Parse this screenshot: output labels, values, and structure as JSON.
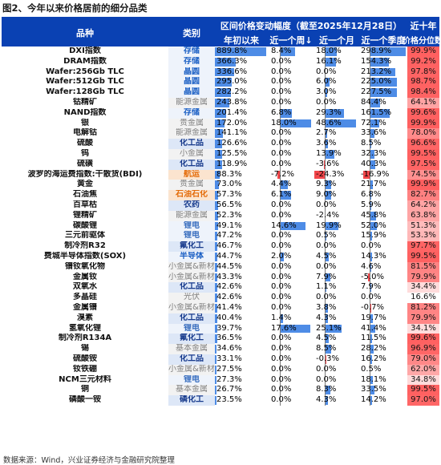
{
  "title": "图2、今年以来价格居前的细分品类",
  "header": {
    "product": "品种",
    "category": "类别",
    "range_title": "区间价格变动幅度（截至2025年12月28日）",
    "ytd": "年初以来",
    "week": "近一个周↓",
    "month": "近一个月",
    "quarter": "近一个季度",
    "pct_title": "近十年",
    "pct_sub": "价格分位数"
  },
  "footer": "数据来源：Wind，兴业证券经济与金融研究院整理",
  "colors": {
    "header_bg": "#0a41b3",
    "bar_pos": "#4e8ce6",
    "bar_neg": "#f2464a",
    "pct_high": "#f76d6d",
    "pct_low": "#ffffff"
  },
  "category_styles": {
    "存储": {
      "bg": "#eef3fb",
      "fg": "#1a5fc4"
    },
    "晶圆": {
      "bg": "#eef3fb",
      "fg": "#1a5fc4"
    },
    "能源金属": {
      "bg": "#f2f2f2",
      "fg": "#808080"
    },
    "贵金属": {
      "bg": "#f2f2f2",
      "fg": "#808080"
    },
    "小金属": {
      "bg": "#f2f2f2",
      "fg": "#808080"
    },
    "化工品": {
      "bg": "#dde7f7",
      "fg": "#173a8c"
    },
    "小金属&新材料": {
      "bg": "#f2f2f2",
      "fg": "#808080"
    },
    "航运": {
      "bg": "#fbe4cf",
      "fg": "#e46c0a"
    },
    "石油石化": {
      "bg": "#fbe4cf",
      "fg": "#e46c0a"
    },
    "农药": {
      "bg": "#dde7f7",
      "fg": "#173a8c"
    },
    "锂电": {
      "bg": "#eef3fb",
      "fg": "#3a6fbf"
    },
    "氟化工": {
      "bg": "#dde7f7",
      "fg": "#173a8c"
    },
    "半导体": {
      "bg": "#eef3fb",
      "fg": "#1a5fc4"
    },
    "光伏": {
      "bg": "#f2f2f2",
      "fg": "#808080"
    },
    "基本金属": {
      "bg": "#f2f2f2",
      "fg": "#808080"
    },
    "磷化工": {
      "bg": "#dde7f7",
      "fg": "#173a8c"
    }
  },
  "rows": [
    {
      "name": "DXI指数",
      "cat": "存储",
      "ytd": 889.8,
      "w": 8.4,
      "m": 18.0,
      "q": 298.9,
      "p": 99.9
    },
    {
      "name": "DRAM指数",
      "cat": "存储",
      "ytd": 366.3,
      "w": 0.0,
      "m": 16.1,
      "q": 154.3,
      "p": 99.2
    },
    {
      "name": "Wafer:256Gb TLC",
      "cat": "晶圆",
      "ytd": 336.6,
      "w": 0.0,
      "m": 0.0,
      "q": 213.2,
      "p": 97.8
    },
    {
      "name": "Wafer:512Gb TLC",
      "cat": "晶圆",
      "ytd": 295.0,
      "w": 0.0,
      "m": 6.0,
      "q": 225.0,
      "p": 98.7
    },
    {
      "name": "Wafer:128Gb TLC",
      "cat": "晶圆",
      "ytd": 282.2,
      "w": 0.0,
      "m": 3.0,
      "q": 227.5,
      "p": 98.4
    },
    {
      "name": "钴精矿",
      "cat": "能源金属",
      "ytd": 243.8,
      "w": 0.0,
      "m": 0.0,
      "q": 84.4,
      "p": 64.1
    },
    {
      "name": "NAND指数",
      "cat": "存储",
      "ytd": 201.4,
      "w": 6.8,
      "m": 29.3,
      "q": 161.5,
      "p": 99.6
    },
    {
      "name": "银",
      "cat": "贵金属",
      "ytd": 172.0,
      "w": 18.0,
      "m": 48.6,
      "q": 72.1,
      "p": 99.9
    },
    {
      "name": "电解钴",
      "cat": "能源金属",
      "ytd": 141.1,
      "w": 0.0,
      "m": 2.7,
      "q": 33.6,
      "p": 78.0
    },
    {
      "name": "硫酸",
      "cat": "化工品",
      "ytd": 126.6,
      "w": 0.0,
      "m": 3.6,
      "q": 8.5,
      "p": 96.6
    },
    {
      "name": "钨",
      "cat": "小金属",
      "ytd": 125.5,
      "w": 0.0,
      "m": 13.9,
      "q": 32.3,
      "p": 99.5
    },
    {
      "name": "硫磺",
      "cat": "化工品",
      "ytd": 118.9,
      "w": 0.0,
      "m": -3.6,
      "q": 40.3,
      "p": 97.5
    },
    {
      "name": "波罗的海运费指数:干散货(BDI)",
      "cat": "航运",
      "ytd": 88.3,
      "w": -7.2,
      "m": -24.3,
      "q": -16.9,
      "p": 74.5
    },
    {
      "name": "黄金",
      "cat": "贵金属",
      "ytd": 73.0,
      "w": 4.4,
      "m": 9.3,
      "q": 21.7,
      "p": 99.9
    },
    {
      "name": "石油焦",
      "cat": "石油石化",
      "ytd": 57.3,
      "w": 6.1,
      "m": 9.0,
      "q": 6.8,
      "p": 82.7
    },
    {
      "name": "百草枯",
      "cat": "农药",
      "ytd": 56.5,
      "w": 0.0,
      "m": 0.0,
      "q": 5.9,
      "p": 64.2
    },
    {
      "name": "锂精矿",
      "cat": "能源金属",
      "ytd": 52.3,
      "w": 0.0,
      "m": -2.4,
      "q": 45.8,
      "p": 63.8
    },
    {
      "name": "碳酸锂",
      "cat": "锂电",
      "ytd": 49.1,
      "w": 14.6,
      "m": 19.9,
      "q": 52.0,
      "p": 51.3
    },
    {
      "name": "三元前驱体",
      "cat": "锂电",
      "ytd": 47.2,
      "w": 0.0,
      "m": 0.5,
      "q": 15.9,
      "p": 53.3
    },
    {
      "name": "制冷剂R32",
      "cat": "氟化工",
      "ytd": 46.7,
      "w": 0.0,
      "m": 0.0,
      "q": 0.0,
      "p": 97.7
    },
    {
      "name": "费城半导体指数(SOX)",
      "cat": "半导体",
      "ytd": 44.7,
      "w": 2.0,
      "m": 4.5,
      "q": 14.3,
      "p": 99.5
    },
    {
      "name": "镨钕氧化物",
      "cat": "小金属&新材料",
      "ytd": 44.5,
      "w": 0.0,
      "m": 0.0,
      "q": 4.6,
      "p": 81.5
    },
    {
      "name": "金属钕",
      "cat": "小金属&新材料",
      "ytd": 43.3,
      "w": 0.0,
      "m": 7.9,
      "q": -5.0,
      "p": 79.9
    },
    {
      "name": "双氧水",
      "cat": "化工品",
      "ytd": 42.6,
      "w": 0.0,
      "m": 1.1,
      "q": 7.9,
      "p": 34.4
    },
    {
      "name": "多晶硅",
      "cat": "光伏",
      "ytd": 42.6,
      "w": 0.0,
      "m": 0.0,
      "q": 0.0,
      "p": 16.6
    },
    {
      "name": "金属镨",
      "cat": "小金属&新材料",
      "ytd": 41.4,
      "w": 0.0,
      "m": 3.8,
      "q": -0.7,
      "p": 81.2
    },
    {
      "name": "溴素",
      "cat": "化工品",
      "ytd": 40.4,
      "w": 1.4,
      "m": 4.3,
      "q": 19.7,
      "p": 79.9
    },
    {
      "name": "氢氧化锂",
      "cat": "锂电",
      "ytd": 39.7,
      "w": 17.6,
      "m": 25.1,
      "q": 41.4,
      "p": 34.1
    },
    {
      "name": "制冷剂R134A",
      "cat": "氟化工",
      "ytd": 36.5,
      "w": 0.0,
      "m": 4.5,
      "q": 11.5,
      "p": 99.6
    },
    {
      "name": "锡",
      "cat": "基本金属",
      "ytd": 34.6,
      "w": 0.0,
      "m": 8.5,
      "q": 28.2,
      "p": 96.9
    },
    {
      "name": "硫酸铵",
      "cat": "化工品",
      "ytd": 33.1,
      "w": 0.0,
      "m": -0.3,
      "q": 16.2,
      "p": 79.0
    },
    {
      "name": "钕铁硼",
      "cat": "小金属&新材料",
      "ytd": 27.5,
      "w": 0.0,
      "m": 0.0,
      "q": 0.5,
      "p": 62.0
    },
    {
      "name": "NCM三元材料",
      "cat": "锂电",
      "ytd": 27.3,
      "w": 0.0,
      "m": 0.0,
      "q": 18.1,
      "p": 34.8
    },
    {
      "name": "铜",
      "cat": "基本金属",
      "ytd": 26.7,
      "w": 0.0,
      "m": 8.3,
      "q": 33.5,
      "p": 99.5
    },
    {
      "name": "磷酸一铵",
      "cat": "磷化工",
      "ytd": 23.5,
      "w": 0.0,
      "m": 4.3,
      "q": 14.2,
      "p": 97.0
    }
  ]
}
